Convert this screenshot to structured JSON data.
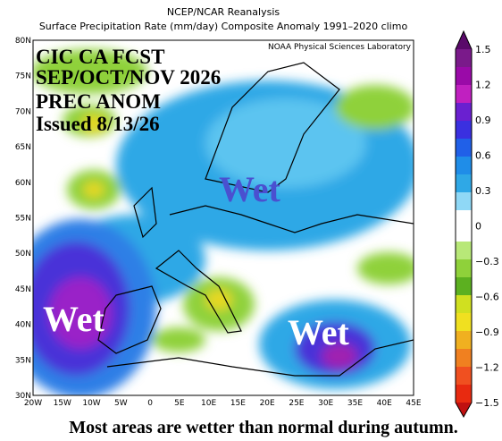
{
  "header": {
    "line1": "NCEP/NCAR Reanalysis",
    "line2": "Surface Precipitation Rate (mm/day) Composite Anomaly 1991–2020 climo"
  },
  "map": {
    "credit": "NOAA Physical Sciences Laboratory",
    "overlay": [
      "CIC CA FCST",
      "SEP/OCT/NOV 2026",
      "PREC ANOM",
      "Issued 8/13/26"
    ],
    "annotations": [
      "Wet",
      "Wet",
      "Wet"
    ],
    "lat_labels": [
      "80N",
      "75N",
      "70N",
      "65N",
      "60N",
      "55N",
      "50N",
      "45N",
      "40N",
      "35N",
      "30N"
    ],
    "lon_labels": [
      "20W",
      "15W",
      "10W",
      "5W",
      "0",
      "5E",
      "10E",
      "15E",
      "20E",
      "25E",
      "30E",
      "35E",
      "40E",
      "45E"
    ]
  },
  "colorbar": {
    "labels": [
      "1.5",
      "1.2",
      "0.9",
      "0.6",
      "0.3",
      "0",
      "−0.3",
      "−0.6",
      "−0.9",
      "−1.2",
      "−1.5"
    ]
  },
  "caption": "Most areas are wetter than normal during autumn."
}
